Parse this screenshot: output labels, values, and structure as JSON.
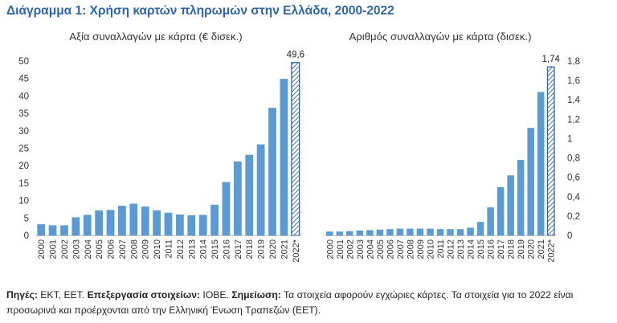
{
  "title": "Διάγραμμα 1: Χρήση καρτών πληρωμών στην Ελλάδα, 2000-2022",
  "colors": {
    "title": "#2e64a8",
    "bar": "#5b9bd5",
    "hatch": "#2e64a8"
  },
  "chart_data": [
    {
      "type": "bar",
      "title": "Αξία συναλλαγών με κάρτα (€ δισεκ.)",
      "categories": [
        "2000",
        "2001",
        "2002",
        "2003",
        "2004",
        "2005",
        "2006",
        "2007",
        "2008",
        "2009",
        "2010",
        "2011",
        "2012",
        "2013",
        "2014",
        "2015",
        "2016",
        "2017",
        "2018",
        "2019",
        "2020",
        "2021",
        "2022*"
      ],
      "values": [
        3.2,
        2.9,
        2.9,
        5.2,
        5.9,
        7.2,
        7.3,
        8.5,
        9.1,
        8.3,
        7.2,
        6.5,
        6.0,
        5.8,
        5.9,
        8.8,
        15.3,
        21.2,
        23.1,
        26.1,
        36.6,
        44.9,
        49.6
      ],
      "data_labels": [
        {
          "category": "2022*",
          "text": "49,6"
        }
      ],
      "yticks": [
        "0",
        "5",
        "10",
        "15",
        "20",
        "25",
        "30",
        "35",
        "40",
        "45",
        "50"
      ],
      "ylim": [
        0,
        50
      ],
      "y_axis_side": "left",
      "highlight": {
        "category": "2022*",
        "style": "hatched"
      },
      "grid": false
    },
    {
      "type": "bar",
      "title": "Αριθμός συναλλαγών με κάρτα (δισεκ.)",
      "categories": [
        "2000",
        "2001",
        "2002",
        "2003",
        "2004",
        "2005",
        "2006",
        "2007",
        "2008",
        "2009",
        "2010",
        "2011",
        "2012",
        "2013",
        "2014",
        "2015",
        "2016",
        "2017",
        "2018",
        "2019",
        "2020",
        "2021",
        "2022*"
      ],
      "values": [
        0.04,
        0.04,
        0.045,
        0.05,
        0.055,
        0.06,
        0.065,
        0.07,
        0.07,
        0.07,
        0.07,
        0.065,
        0.065,
        0.065,
        0.08,
        0.14,
        0.29,
        0.5,
        0.62,
        0.78,
        1.11,
        1.48,
        1.74
      ],
      "data_labels": [
        {
          "category": "2022*",
          "text": "1,74"
        }
      ],
      "yticks": [
        "0",
        "0,2",
        "0,4",
        "0,6",
        "0,8",
        "1",
        "1,2",
        "1,4",
        "1,6",
        "1,8"
      ],
      "ylim": [
        0,
        1.8
      ],
      "y_axis_side": "right",
      "highlight": {
        "category": "2022*",
        "style": "hatched"
      },
      "grid": false
    }
  ],
  "source": {
    "label1": "Πηγές:",
    "text1": " ΕΚΤ, ΕΕΤ. ",
    "label2": "Επεξεργασία στοιχείων:",
    "text2": " ΙΟΒΕ. ",
    "label3": "Σημείωση:",
    "text3": " Τα στοιχεία αφορούν εγχώριες κάρτες. Τα στοιχεία για το 2022 είναι προσωρινά και προέρχονται από την Ελληνική Ένωση Τραπεζών (ΕΕΤ)."
  }
}
